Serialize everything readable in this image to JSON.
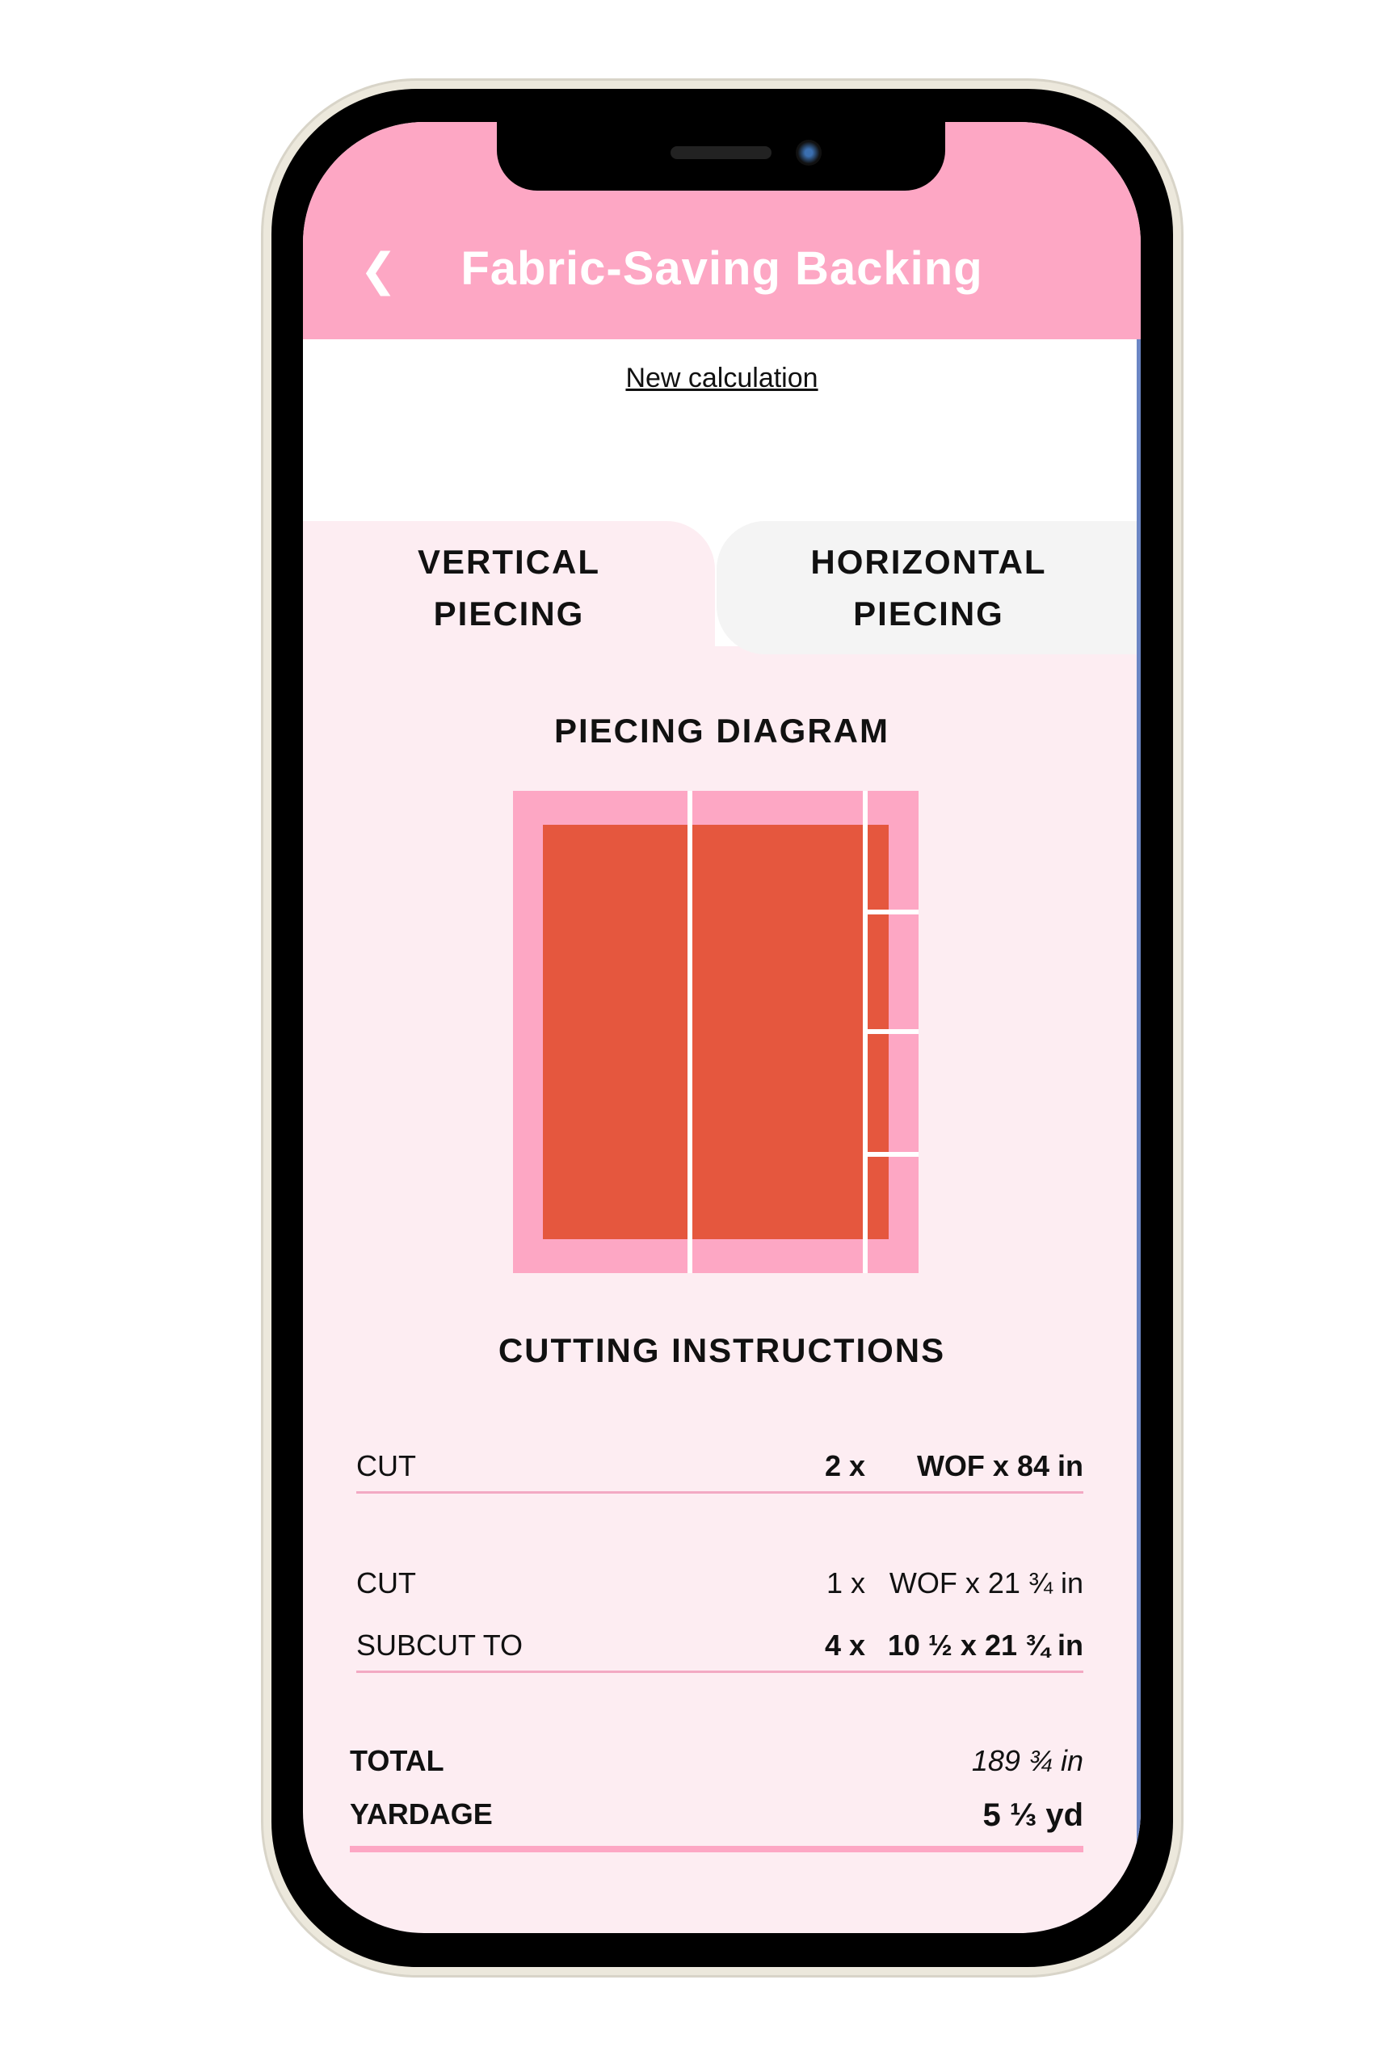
{
  "header": {
    "title": "Fabric-Saving Backing",
    "back_icon": "chevron-left-icon"
  },
  "new_calculation": "New calculation",
  "tabs": [
    {
      "label": "VERTICAL\nPIECING",
      "selected": true
    },
    {
      "label": "HORIZONTAL\nPIECING",
      "selected": false
    }
  ],
  "diagram": {
    "title": "PIECING DIAGRAM",
    "colors": {
      "backing": "#fda7c4",
      "quilt": "#e5573e",
      "seam": "#ffffff"
    }
  },
  "cutting": {
    "title": "CUTTING INSTRUCTIONS",
    "rows": [
      {
        "label": "CUT",
        "qty": "2 x",
        "dim": "WOF x 84 in",
        "bold": true
      },
      {
        "label": "CUT",
        "qty": "1 x",
        "dim": "WOF x 21 ¾ in",
        "bold": false
      },
      {
        "label": "SUBCUT TO",
        "qty": "4 x",
        "dim": "10 ½ x 21 ¾ in",
        "bold": true
      }
    ]
  },
  "total": {
    "label": "TOTAL",
    "value": "189 ¾ in"
  },
  "yardage": {
    "label": "YARDAGE",
    "value": "5 ⅓ yd"
  },
  "colors": {
    "accent": "#fda7c4",
    "background": "#fdedf2"
  }
}
